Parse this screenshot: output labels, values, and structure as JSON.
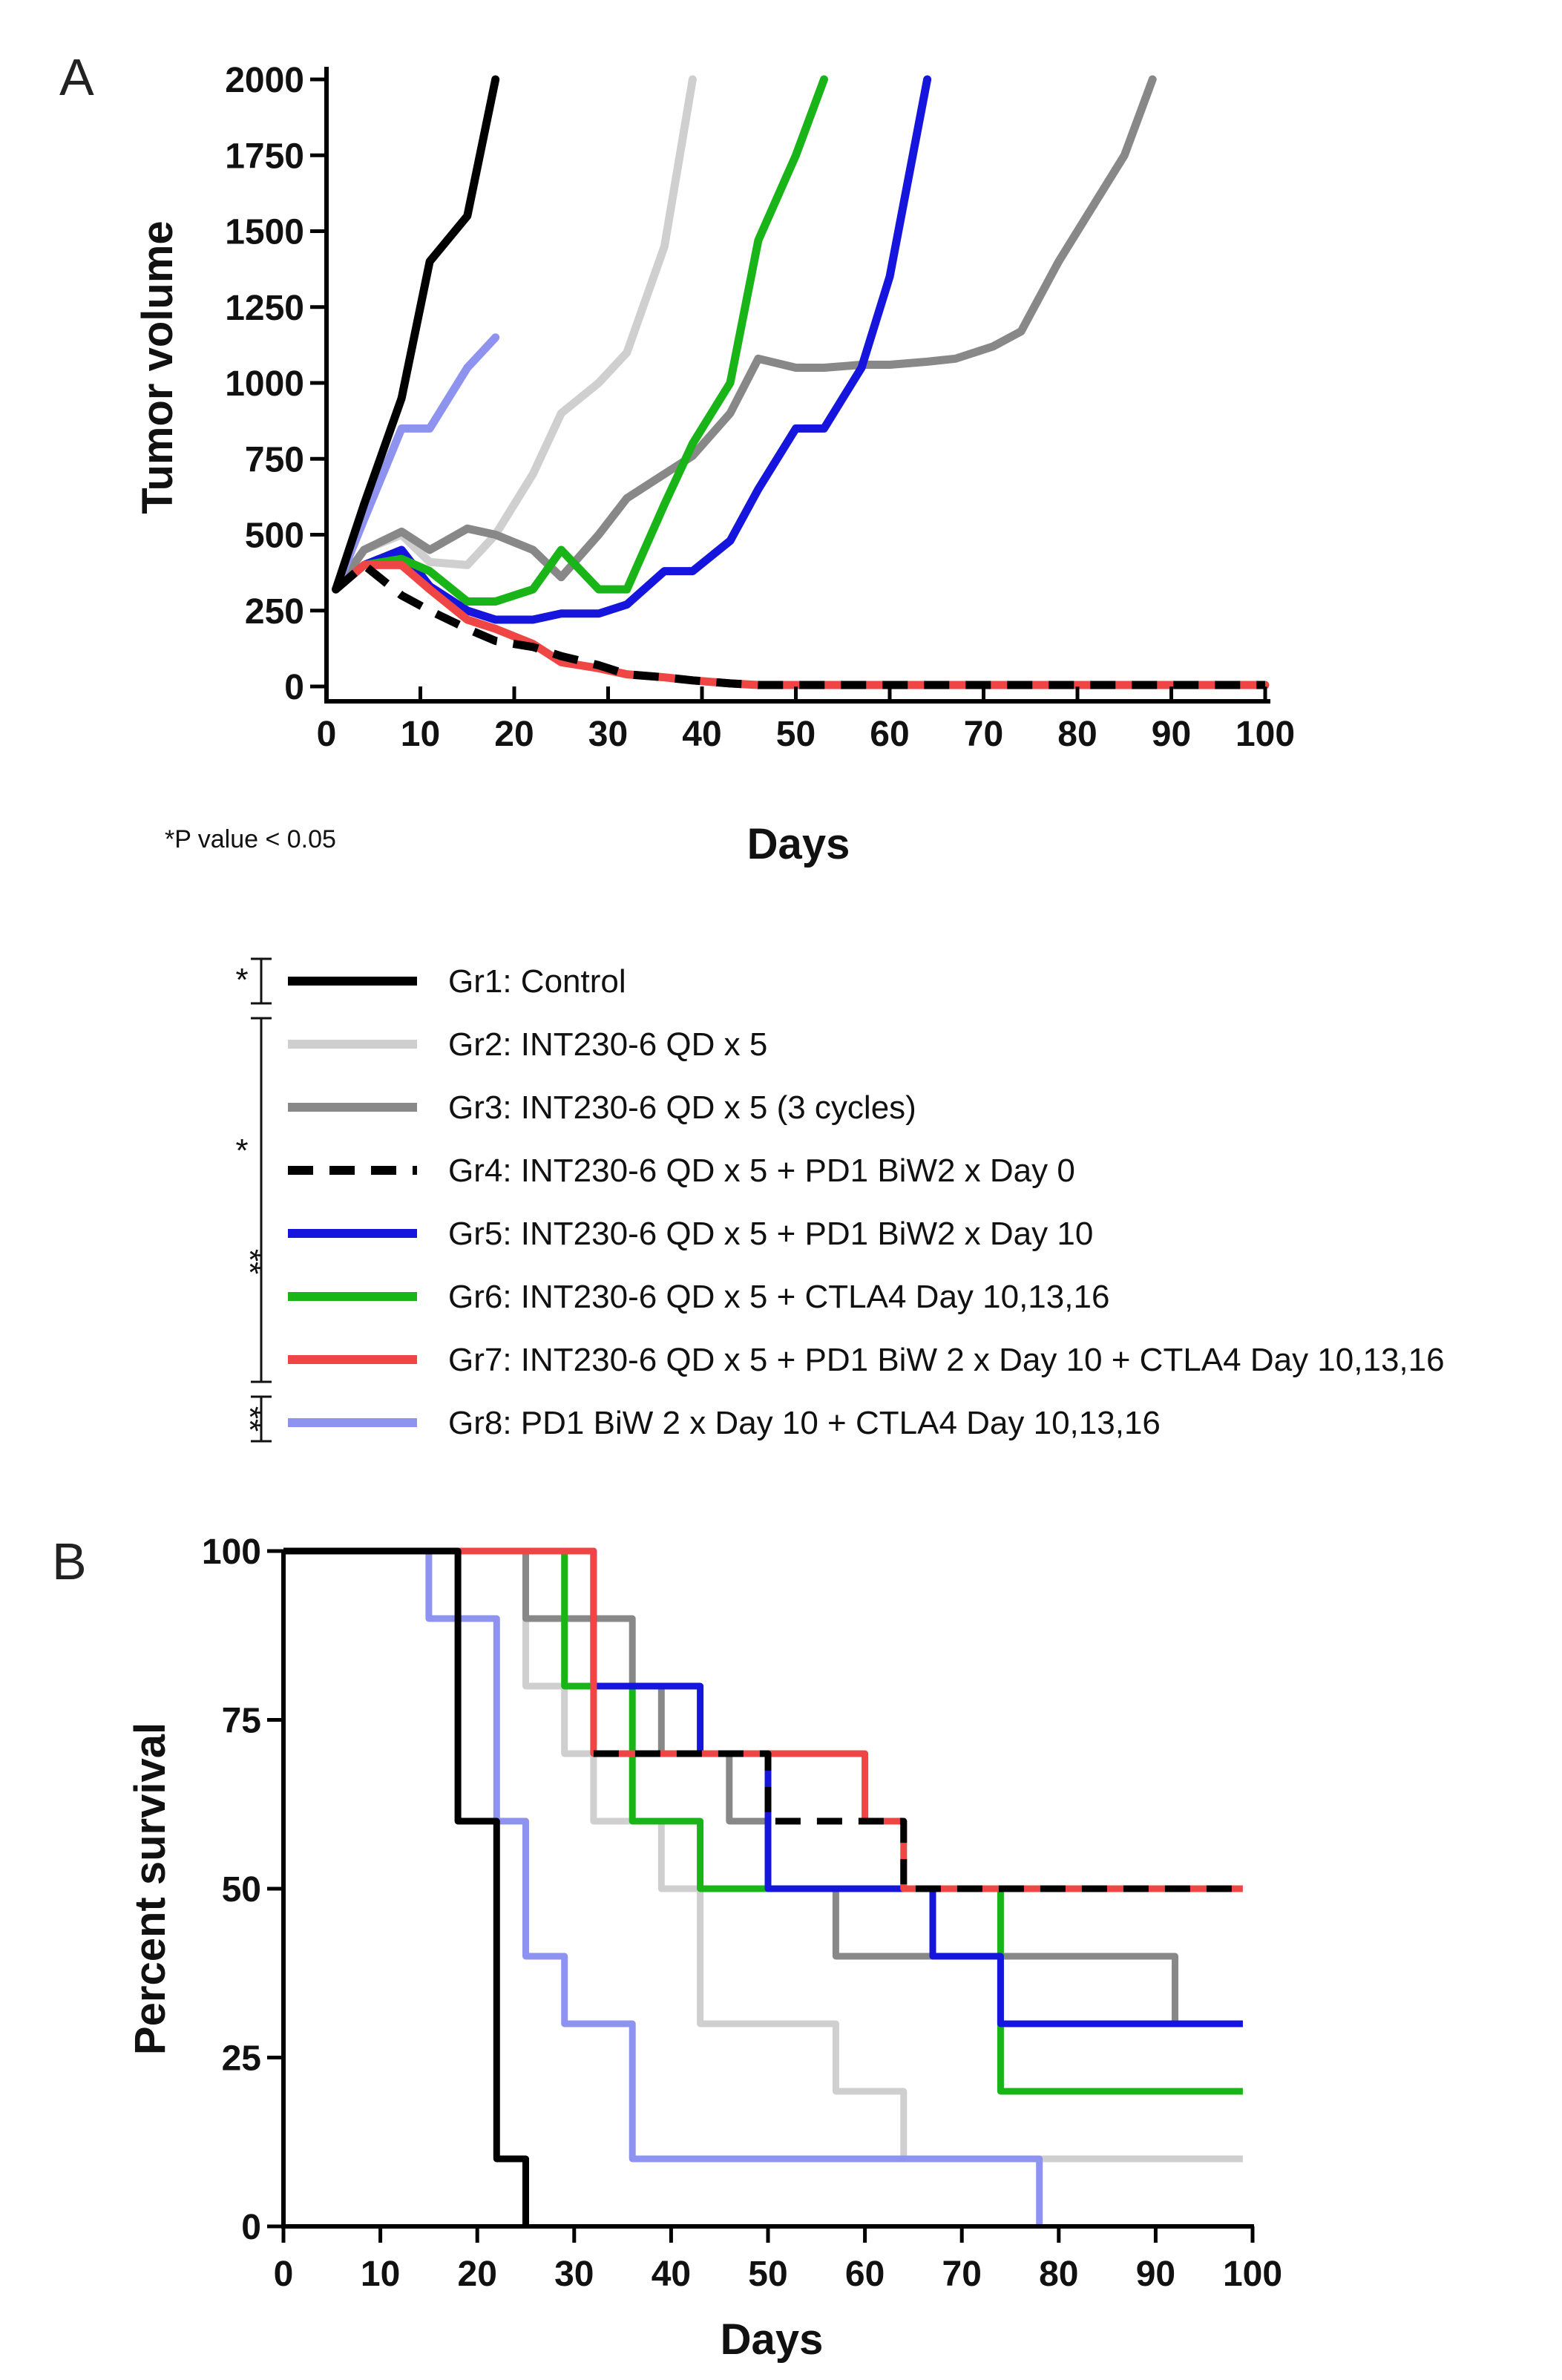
{
  "chart_data": [
    {
      "panel": "A",
      "type": "line",
      "xlabel": "Days",
      "ylabel": "Tumor volume",
      "xlim": [
        0,
        100
      ],
      "ylim": [
        0,
        2000
      ],
      "x_ticks": [
        "0",
        "10",
        "20",
        "30",
        "40",
        "50",
        "60",
        "70",
        "80",
        "90",
        "100"
      ],
      "y_ticks": [
        "0",
        "250",
        "500",
        "750",
        "1000",
        "1250",
        "1500",
        "1750",
        "2000"
      ],
      "note": "*P value < 0.05",
      "series": [
        {
          "name": "Gr2: INT230-6 QD x 5",
          "color": "#cfcfcf",
          "dash": false,
          "x": [
            1,
            4,
            8,
            11,
            15,
            18,
            22,
            25,
            29,
            32,
            36,
            39
          ],
          "y": [
            320,
            450,
            500,
            410,
            400,
            500,
            700,
            900,
            1000,
            1100,
            1450,
            2000
          ]
        },
        {
          "name": "Gr3: INT230-6 QD x 5 (3 cycles)",
          "color": "#888888",
          "dash": false,
          "x": [
            1,
            4,
            8,
            11,
            15,
            18,
            22,
            25,
            29,
            32,
            36,
            39,
            43,
            46,
            50,
            53,
            57,
            60,
            64,
            67,
            71,
            74,
            78,
            81,
            85,
            88
          ],
          "y": [
            320,
            450,
            510,
            450,
            520,
            500,
            450,
            360,
            500,
            620,
            700,
            760,
            900,
            1080,
            1050,
            1050,
            1060,
            1060,
            1070,
            1080,
            1120,
            1170,
            1400,
            1550,
            1750,
            2000
          ]
        },
        {
          "name": "Gr5: INT230-6 QD x 5 + PD1 BiW2 x Day 10",
          "color": "#1515dd",
          "dash": false,
          "x": [
            1,
            4,
            8,
            11,
            15,
            18,
            22,
            25,
            29,
            32,
            36,
            39,
            43,
            46,
            50,
            53,
            57,
            60,
            64
          ],
          "y": [
            320,
            400,
            450,
            330,
            250,
            220,
            220,
            240,
            240,
            270,
            380,
            380,
            480,
            650,
            850,
            850,
            1050,
            1350,
            2000
          ]
        },
        {
          "name": "Gr6: INT230-6 QD x 5 + CTLA4 Day 10,13,16",
          "color": "#18b418",
          "dash": false,
          "x": [
            1,
            4,
            8,
            11,
            15,
            18,
            22,
            25,
            29,
            32,
            36,
            39,
            43,
            46,
            50,
            53
          ],
          "y": [
            320,
            400,
            420,
            380,
            280,
            280,
            320,
            450,
            320,
            320,
            600,
            800,
            1000,
            1470,
            1750,
            2000
          ]
        },
        {
          "name": "Gr8: PD1 BiW 2 x Day 10 + CTLA4 Day 10,13,16",
          "color": "#8f93f0",
          "dash": false,
          "x": [
            1,
            4,
            8,
            11,
            15,
            18
          ],
          "y": [
            320,
            550,
            850,
            850,
            1050,
            1150
          ]
        },
        {
          "name": "Gr7: INT230-6 QD x 5 + PD1 BiW 2 x Day 10 + CTLA4 Day 10,13,16",
          "color": "#f04545",
          "dash": false,
          "x": [
            1,
            4,
            8,
            11,
            15,
            18,
            22,
            25,
            29,
            32,
            36,
            39,
            43,
            46,
            50,
            53,
            57,
            60,
            64,
            70,
            80,
            90,
            100
          ],
          "y": [
            320,
            400,
            400,
            320,
            220,
            190,
            140,
            80,
            60,
            40,
            30,
            20,
            10,
            5,
            5,
            5,
            5,
            5,
            5,
            5,
            5,
            5,
            5
          ]
        },
        {
          "name": "Gr4: INT230-6 QD x 5 + PD1 BiW2 x Day 0",
          "color": "#000000",
          "dash": true,
          "x": [
            1,
            4,
            8,
            11,
            15,
            18,
            22,
            25,
            29,
            32,
            36,
            39,
            43,
            46,
            50,
            53,
            57,
            60,
            64,
            70,
            80,
            90,
            100
          ],
          "y": [
            320,
            400,
            300,
            250,
            190,
            150,
            130,
            100,
            70,
            40,
            30,
            20,
            10,
            5,
            5,
            5,
            5,
            5,
            5,
            5,
            5,
            5,
            5
          ]
        },
        {
          "name": "Gr1: Control",
          "color": "#000000",
          "dash": false,
          "x": [
            1,
            4,
            8,
            11,
            15,
            18
          ],
          "y": [
            320,
            600,
            950,
            1400,
            1550,
            2000
          ]
        }
      ]
    },
    {
      "panel": "B",
      "type": "line",
      "step": true,
      "xlabel": "Days",
      "ylabel": "Percent survival",
      "xlim": [
        0,
        100
      ],
      "ylim": [
        0,
        100
      ],
      "x_ticks": [
        "0",
        "10",
        "20",
        "30",
        "40",
        "50",
        "60",
        "70",
        "80",
        "90",
        "100"
      ],
      "y_ticks": [
        "0",
        "25",
        "50",
        "75",
        "100"
      ],
      "series": [
        {
          "name": "Gr2: INT230-6 QD x 5",
          "color": "#cfcfcf",
          "dash": false,
          "x": [
            0,
            25,
            29,
            32,
            39,
            43,
            57,
            64,
            99
          ],
          "y": [
            100,
            80,
            70,
            60,
            50,
            30,
            20,
            10,
            10
          ]
        },
        {
          "name": "Gr3: INT230-6 QD x 5 (3 cycles)",
          "color": "#888888",
          "dash": false,
          "x": [
            0,
            25,
            36,
            39,
            46,
            50,
            57,
            92,
            99
          ],
          "y": [
            100,
            90,
            80,
            70,
            60,
            50,
            40,
            30,
            30
          ]
        },
        {
          "name": "Gr6: INT230-6 QD x 5 + CTLA4 Day 10,13,16",
          "color": "#18b418",
          "dash": false,
          "x": [
            0,
            29,
            32,
            36,
            43,
            74,
            99
          ],
          "y": [
            100,
            80,
            80,
            60,
            50,
            20,
            20
          ]
        },
        {
          "name": "Gr5: INT230-6 QD x 5 + PD1 BiW2 x Day 10",
          "color": "#1515dd",
          "dash": false,
          "x": [
            0,
            32,
            39,
            43,
            50,
            67,
            74,
            92,
            99
          ],
          "y": [
            100,
            80,
            80,
            70,
            50,
            40,
            30,
            30,
            30
          ]
        },
        {
          "name": "Gr7: INT230-6 QD x 5 + PD1 BiW 2 x Day 10 + CTLA4 Day 10,13,16",
          "color": "#f04545",
          "dash": false,
          "x": [
            0,
            32,
            50,
            60,
            64,
            99
          ],
          "y": [
            100,
            70,
            70,
            60,
            50,
            50
          ]
        },
        {
          "name": "Gr4: INT230-6 QD x 5 + PD1 BiW2 x Day 0",
          "color": "#000000",
          "dash": true,
          "x": [
            32,
            50,
            64,
            99
          ],
          "y": [
            70,
            60,
            50,
            50
          ]
        },
        {
          "name": "Gr8: PD1 BiW 2 x Day 10 + CTLA4 Day 10,13,16",
          "color": "#8f93f0",
          "dash": false,
          "x": [
            0,
            15,
            18,
            22,
            25,
            29,
            36,
            78
          ],
          "y": [
            100,
            90,
            90,
            60,
            40,
            30,
            10,
            0
          ]
        },
        {
          "name": "Gr1: Control",
          "color": "#000000",
          "dash": false,
          "x": [
            0,
            18,
            22,
            25
          ],
          "y": [
            100,
            60,
            10,
            0
          ]
        }
      ]
    }
  ],
  "legend": {
    "items": [
      {
        "label": "Gr1: Control",
        "color": "#000000",
        "dash": false
      },
      {
        "label": "Gr2: INT230-6 QD x 5",
        "color": "#cfcfcf",
        "dash": false
      },
      {
        "label": "Gr3: INT230-6 QD x 5 (3 cycles)",
        "color": "#888888",
        "dash": false
      },
      {
        "label": "Gr4: INT230-6 QD x 5 + PD1 BiW2 x Day 0",
        "color": "#000000",
        "dash": true
      },
      {
        "label": "Gr5: INT230-6 QD x 5 + PD1 BiW2 x Day 10",
        "color": "#1515dd",
        "dash": false
      },
      {
        "label": "Gr6: INT230-6 QD x 5 + CTLA4 Day 10,13,16",
        "color": "#18b418",
        "dash": false
      },
      {
        "label": "Gr7: INT230-6 QD x 5 + PD1 BiW 2 x Day 10 + CTLA4 Day 10,13,16",
        "color": "#f04545",
        "dash": false
      },
      {
        "label": "Gr8: PD1 BiW 2 x Day 10 + CTLA4 Day 10,13,16",
        "color": "#8f93f0",
        "dash": false
      }
    ],
    "significance": [
      "*",
      "*",
      "**",
      "**"
    ]
  }
}
